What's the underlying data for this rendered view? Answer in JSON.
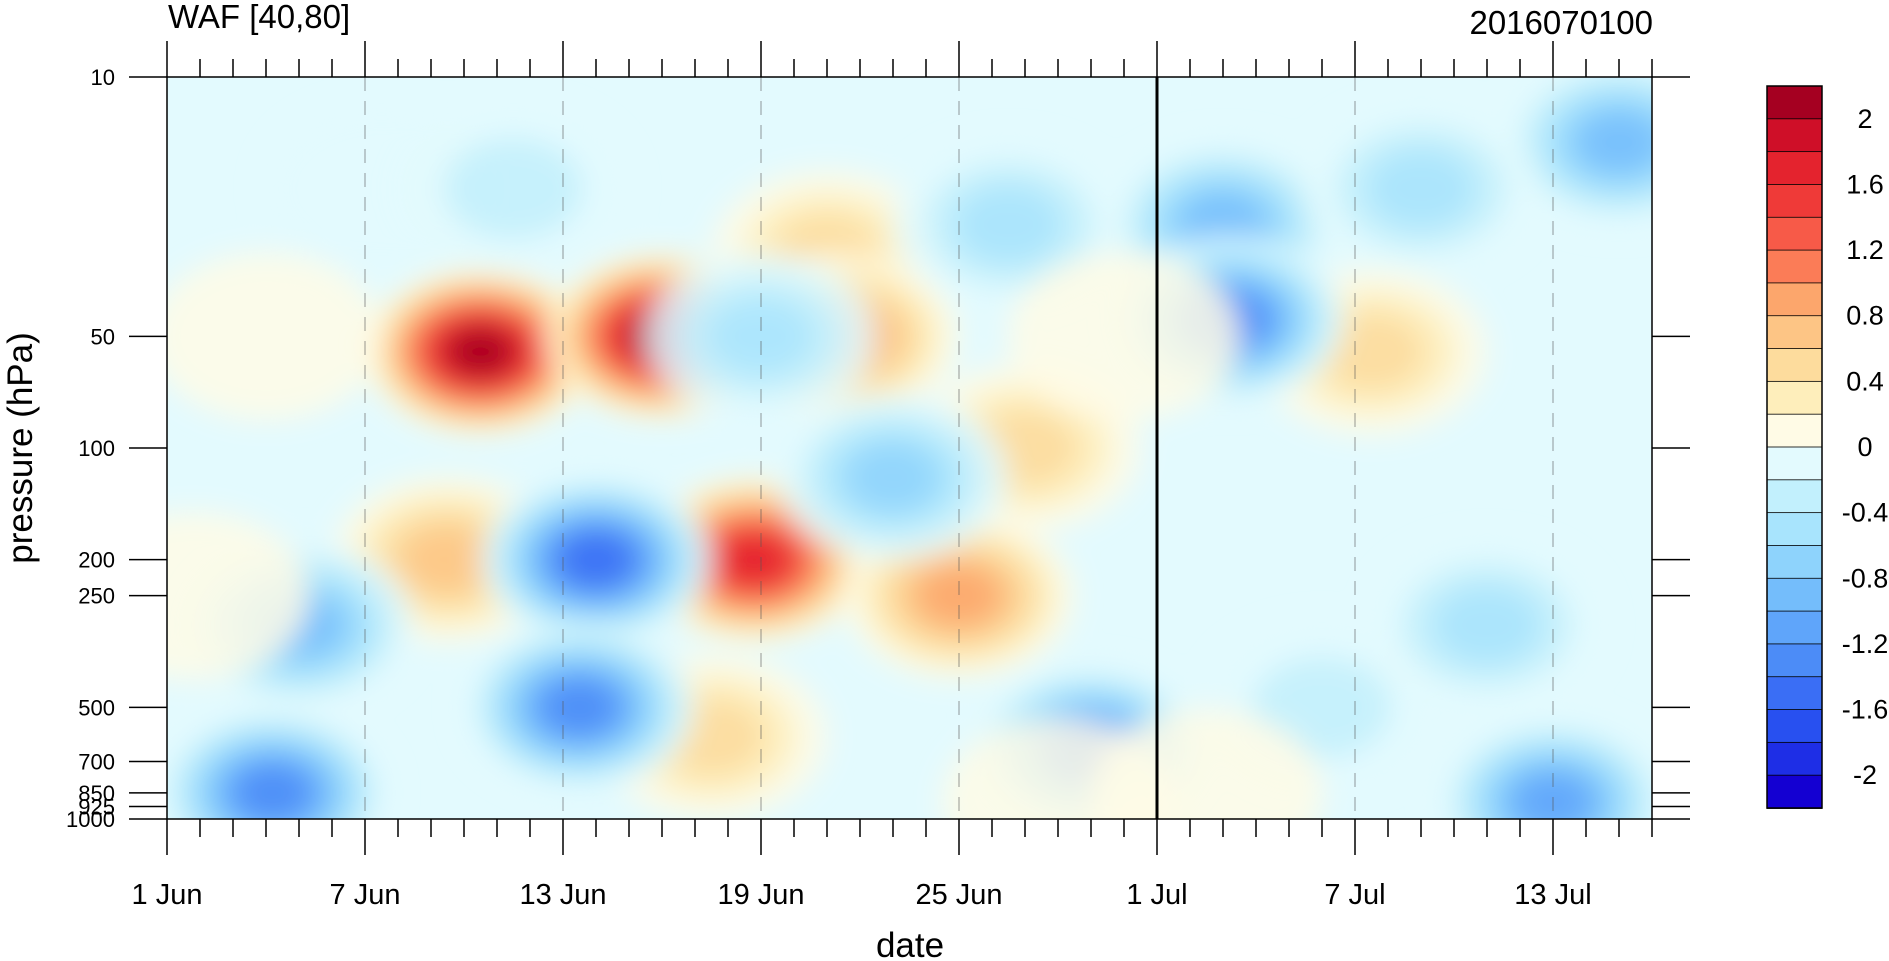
{
  "chart_data": {
    "type": "heatmap",
    "title": "WAF [40,80]",
    "subtitle": "2016070100",
    "xlabel": "date",
    "ylabel": "pressure (hPa)",
    "x_ticks": [
      "1 Jun",
      "7 Jun",
      "13 Jun",
      "19 Jun",
      "25 Jun",
      "1 Jul",
      "7 Jul",
      "13 Jul"
    ],
    "x_tick_days": [
      0,
      6,
      12,
      18,
      24,
      30,
      36,
      42
    ],
    "x_range_days": [
      0,
      45
    ],
    "y_ticks": [
      10,
      50,
      100,
      200,
      250,
      500,
      700,
      850,
      925,
      1000
    ],
    "y_tick_labels": [
      "10",
      "50",
      "100",
      "200",
      "250",
      "500",
      "700",
      "850",
      "925",
      "1000"
    ],
    "y_scale": "log",
    "y_reversed": true,
    "ylim": [
      10,
      1000
    ],
    "marker_date": "1 Jul",
    "colorbar": {
      "levels": [
        -2.2,
        -2.0,
        -1.8,
        -1.6,
        -1.4,
        -1.2,
        -1.0,
        -0.8,
        -0.6,
        -0.4,
        -0.2,
        0,
        0.2,
        0.4,
        0.6,
        0.8,
        1.0,
        1.2,
        1.4,
        1.6,
        1.8,
        2.0,
        2.2
      ],
      "colors": [
        "#1400d2",
        "#1e2ee6",
        "#2850f0",
        "#3a6ef5",
        "#4c8cf7",
        "#5fa5fa",
        "#74bdfb",
        "#8ed3fc",
        "#a8e4fd",
        "#c2f0fd",
        "#e3fafe",
        "#fffbe6",
        "#feeebb",
        "#fddc9d",
        "#fdc585",
        "#fca66c",
        "#fb7c57",
        "#f75a48",
        "#ef3a38",
        "#e4232e",
        "#cf0f28",
        "#a50021"
      ],
      "labels": [
        "2",
        "1.6",
        "1.2",
        "0.8",
        "0.4",
        "0",
        "-0.4",
        "-0.8",
        "-1.2",
        "-1.6",
        "-2"
      ],
      "label_values": [
        2.0,
        1.6,
        1.2,
        0.8,
        0.4,
        0,
        -0.4,
        -0.8,
        -1.2,
        -1.6,
        -2.0
      ]
    },
    "field_features": [
      {
        "day": 9.5,
        "p": 55,
        "value": 2.2
      },
      {
        "day": 15.0,
        "p": 50,
        "value": 2.2
      },
      {
        "day": 17.8,
        "p": 200,
        "value": 1.8
      },
      {
        "day": 8.5,
        "p": 200,
        "value": 0.8
      },
      {
        "day": 3.0,
        "p": 50,
        "value": 0.2
      },
      {
        "day": 16.5,
        "p": 600,
        "value": 0.6
      },
      {
        "day": 20.0,
        "p": 30,
        "value": 0.5
      },
      {
        "day": 20.5,
        "p": 50,
        "value": 0.9
      },
      {
        "day": 26.0,
        "p": 100,
        "value": 0.7
      },
      {
        "day": 24.0,
        "p": 250,
        "value": 0.9
      },
      {
        "day": 36.5,
        "p": 55,
        "value": 0.7
      },
      {
        "day": 13.0,
        "p": 200,
        "value": -1.5
      },
      {
        "day": 12.5,
        "p": 500,
        "value": -1.4
      },
      {
        "day": 4.0,
        "p": 300,
        "value": -0.9
      },
      {
        "day": 3.2,
        "p": 850,
        "value": -1.3
      },
      {
        "day": 28.0,
        "p": 650,
        "value": -1.3
      },
      {
        "day": 32.0,
        "p": 25,
        "value": -1.0
      },
      {
        "day": 32.2,
        "p": 45,
        "value": -1.4
      },
      {
        "day": 25.5,
        "p": 25,
        "value": -0.6
      },
      {
        "day": 44.0,
        "p": 15,
        "value": -1.0
      },
      {
        "day": 42.0,
        "p": 900,
        "value": -1.2
      },
      {
        "day": 22.0,
        "p": 120,
        "value": -0.8
      },
      {
        "day": 18.0,
        "p": 50,
        "value": -0.7
      },
      {
        "day": 35.0,
        "p": 500,
        "value": -0.4
      },
      {
        "day": 40.0,
        "p": 300,
        "value": -0.5
      },
      {
        "day": 29.0,
        "p": 50,
        "value": 0.1
      },
      {
        "day": 0.8,
        "p": 250,
        "value": 0.1
      },
      {
        "day": 6.5,
        "p": 20,
        "value": -0.1
      },
      {
        "day": 10.5,
        "p": 20,
        "value": -0.4
      },
      {
        "day": 38.0,
        "p": 20,
        "value": -0.5
      },
      {
        "day": 27.0,
        "p": 900,
        "value": 0.2
      },
      {
        "day": 31.5,
        "p": 850,
        "value": 0.1
      }
    ]
  }
}
